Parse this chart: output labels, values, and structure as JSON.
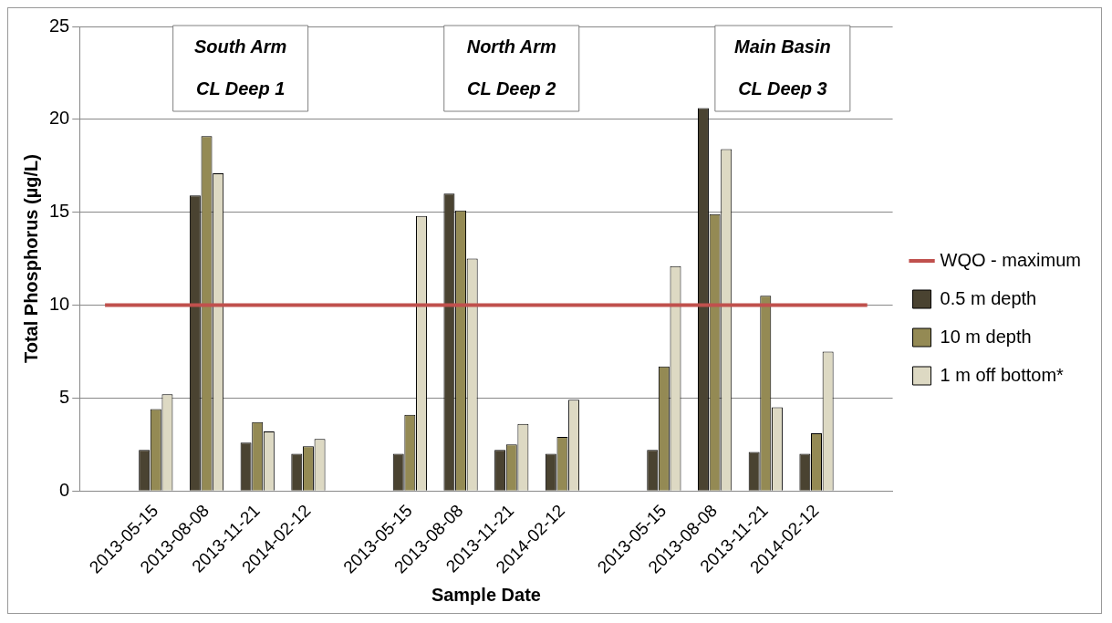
{
  "chart_data": {
    "type": "bar",
    "xlabel": "Sample Date",
    "ylabel": "Total Phosphorus (µg/L)",
    "categories": [
      null,
      "2013-05-15",
      "2013-08-08",
      "2013-11-21",
      "2014-02-12",
      null,
      "2013-05-15",
      "2013-08-08",
      "2013-11-21",
      "2014-02-12",
      null,
      "2013-05-15",
      "2013-08-08",
      "2013-11-21",
      "2014-02-12",
      null
    ],
    "series": [
      {
        "name": "0.5 m depth",
        "color": "#4a4331",
        "values": [
          null,
          2.2,
          15.9,
          2.6,
          2.0,
          null,
          2.0,
          16.0,
          2.2,
          2.0,
          null,
          2.2,
          20.6,
          2.1,
          2.0,
          null
        ]
      },
      {
        "name": "10 m depth",
        "color": "#948a54",
        "values": [
          null,
          4.4,
          19.1,
          3.7,
          2.4,
          null,
          4.1,
          15.1,
          2.5,
          2.9,
          null,
          6.7,
          14.9,
          10.5,
          3.1,
          null
        ]
      },
      {
        "name": "1 m off bottom*",
        "color": "#ddd9c3",
        "values": [
          null,
          5.2,
          17.1,
          3.2,
          2.8,
          null,
          14.8,
          12.5,
          3.6,
          4.9,
          null,
          12.1,
          18.4,
          4.5,
          7.5,
          null
        ]
      },
      {
        "name": "WQO - maximum",
        "type": "line",
        "color": "#c0504d",
        "values": [
          10,
          10,
          10,
          10,
          10,
          10,
          10,
          10,
          10,
          10,
          10,
          10,
          10,
          10,
          10,
          10
        ]
      }
    ],
    "annotations": [
      "South Arm\nCL Deep 1",
      "North Arm\nCL Deep 2",
      "Main Basin\nCL Deep 3"
    ],
    "ylim": [
      0,
      25
    ],
    "yticks": [
      0,
      5,
      10,
      15,
      20,
      25
    ],
    "grid": "y",
    "legend": "right",
    "marker": "none"
  }
}
